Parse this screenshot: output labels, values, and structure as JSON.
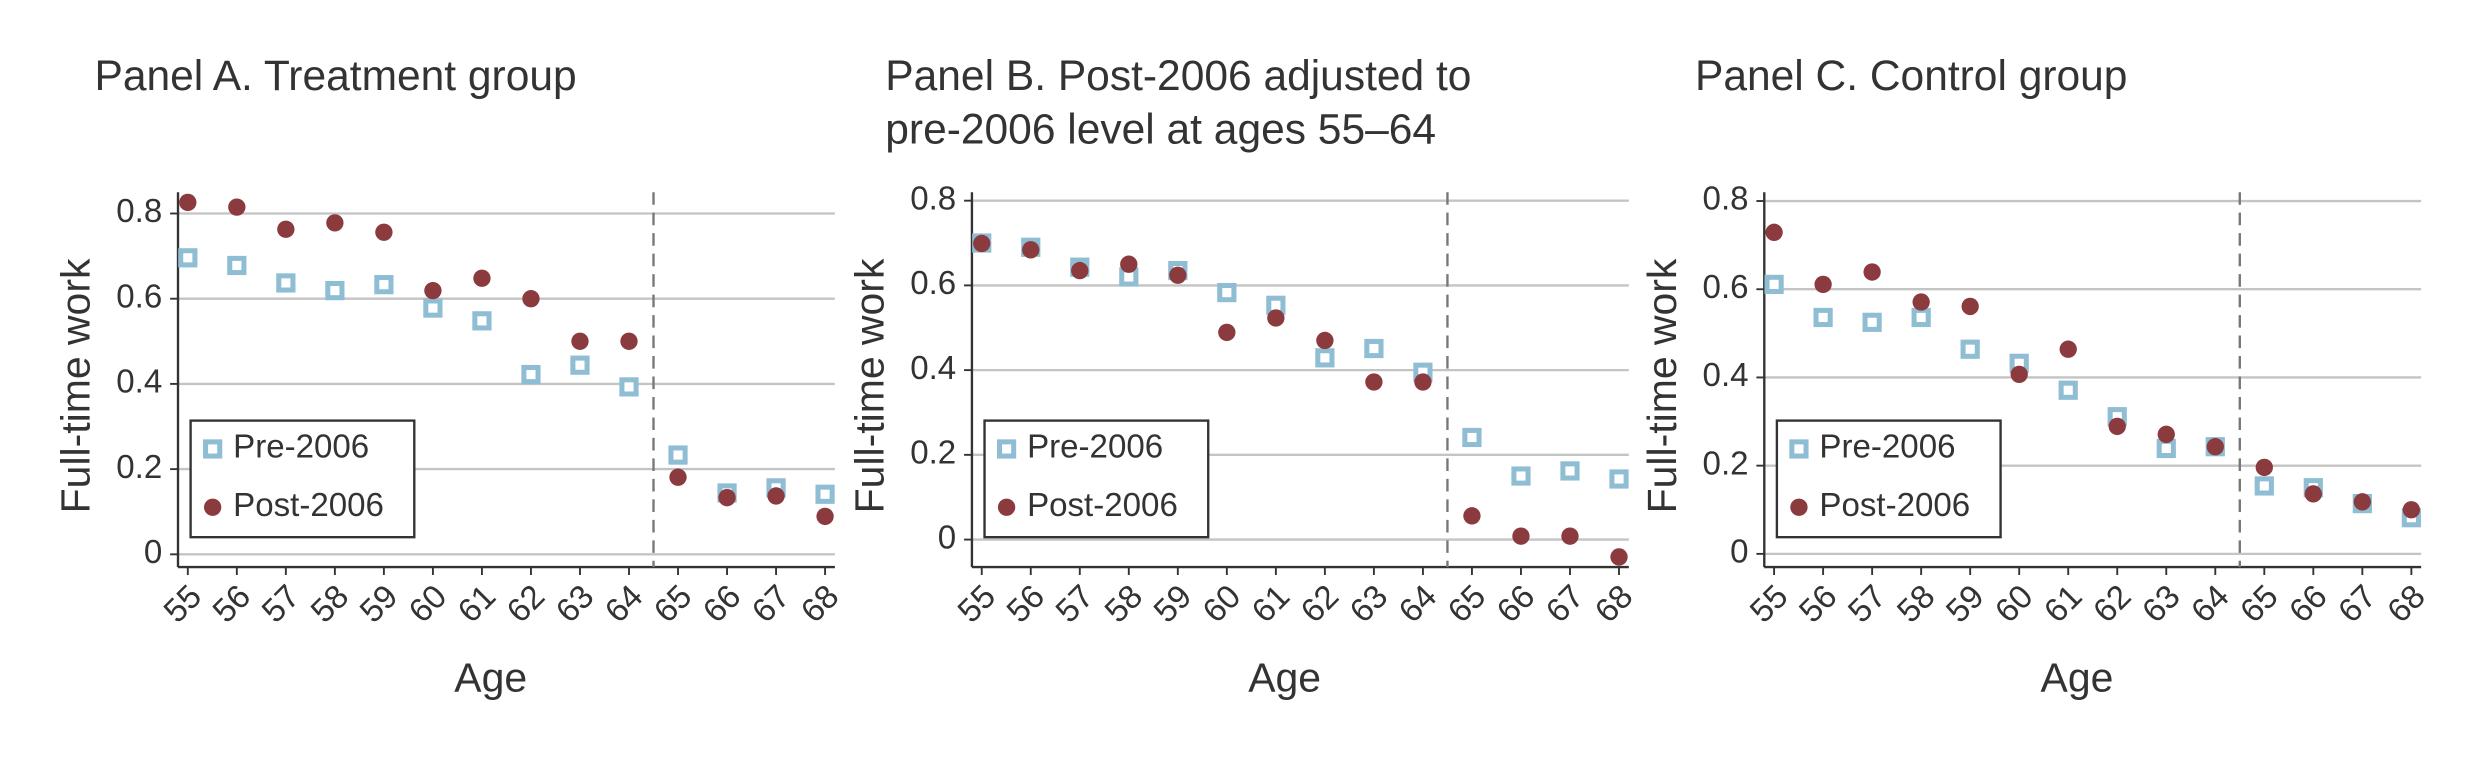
{
  "chart_data": [
    {
      "type": "scatter",
      "title": [
        "Panel A. Treatment group"
      ],
      "x_label": "Age",
      "y_label": "Full-time work",
      "x": [
        55,
        56,
        57,
        58,
        59,
        60,
        61,
        62,
        63,
        64,
        65,
        66,
        67,
        68
      ],
      "series": [
        {
          "name": "Pre-2006",
          "color": "#8fbdd3",
          "marker": "square",
          "values": [
            0.696,
            0.678,
            0.637,
            0.619,
            0.633,
            0.578,
            0.548,
            0.422,
            0.444,
            0.393,
            0.233,
            0.144,
            0.156,
            0.141
          ]
        },
        {
          "name": "Post-2006",
          "color": "#8b3a3e",
          "marker": "circle",
          "values": [
            0.826,
            0.815,
            0.763,
            0.778,
            0.756,
            0.619,
            0.648,
            0.6,
            0.5,
            0.5,
            0.181,
            0.133,
            0.137,
            0.089
          ]
        }
      ],
      "xlim": [
        54.8,
        68.2
      ],
      "ylim": [
        -0.03,
        0.85
      ],
      "xticks": [
        55,
        56,
        57,
        58,
        59,
        60,
        61,
        62,
        63,
        64,
        65,
        66,
        67,
        68
      ],
      "yticks": [
        0,
        0.2,
        0.4,
        0.6,
        0.8
      ],
      "grid": true,
      "vline": 64.5,
      "legend": "lower left"
    },
    {
      "type": "scatter",
      "title": [
        "Panel B. Post-2006 adjusted to",
        "pre-2006 level at ages 55–64"
      ],
      "x_label": "Age",
      "y_label": "Full-time work",
      "x": [
        55,
        56,
        57,
        58,
        59,
        60,
        61,
        62,
        63,
        64,
        65,
        66,
        67,
        68
      ],
      "series": [
        {
          "name": "Pre-2006",
          "color": "#8fbdd3",
          "marker": "square",
          "values": [
            0.7,
            0.69,
            0.643,
            0.62,
            0.635,
            0.583,
            0.553,
            0.429,
            0.451,
            0.395,
            0.241,
            0.15,
            0.162,
            0.143
          ]
        },
        {
          "name": "Post-2006",
          "color": "#8b3a3e",
          "marker": "circle",
          "values": [
            0.699,
            0.684,
            0.635,
            0.65,
            0.624,
            0.489,
            0.523,
            0.47,
            0.372,
            0.372,
            0.056,
            0.008,
            0.008,
            -0.041
          ]
        }
      ],
      "xlim": [
        54.8,
        68.2
      ],
      "ylim": [
        -0.065,
        0.82
      ],
      "xticks": [
        55,
        56,
        57,
        58,
        59,
        60,
        61,
        62,
        63,
        64,
        65,
        66,
        67,
        68
      ],
      "yticks": [
        0,
        0.2,
        0.4,
        0.6,
        0.8
      ],
      "grid": true,
      "vline": 64.5,
      "legend": "lower left"
    },
    {
      "type": "scatter",
      "title": [
        "Panel C. Control group"
      ],
      "x_label": "Age",
      "y_label": "Full-time work",
      "x": [
        55,
        56,
        57,
        58,
        59,
        60,
        61,
        62,
        63,
        64,
        65,
        66,
        67,
        68
      ],
      "series": [
        {
          "name": "Pre-2006",
          "color": "#8fbdd3",
          "marker": "square",
          "values": [
            0.611,
            0.536,
            0.525,
            0.536,
            0.464,
            0.432,
            0.371,
            0.311,
            0.239,
            0.243,
            0.154,
            0.15,
            0.114,
            0.082
          ]
        },
        {
          "name": "Post-2006",
          "color": "#8b3a3e",
          "marker": "circle",
          "values": [
            0.729,
            0.611,
            0.639,
            0.571,
            0.561,
            0.407,
            0.464,
            0.289,
            0.271,
            0.243,
            0.196,
            0.136,
            0.118,
            0.1
          ]
        }
      ],
      "xlim": [
        54.8,
        68.2
      ],
      "ylim": [
        -0.03,
        0.82
      ],
      "xticks": [
        55,
        56,
        57,
        58,
        59,
        60,
        61,
        62,
        63,
        64,
        65,
        66,
        67,
        68
      ],
      "yticks": [
        0,
        0.2,
        0.4,
        0.6,
        0.8
      ],
      "grid": true,
      "vline": 64.5,
      "legend": "lower left"
    }
  ]
}
